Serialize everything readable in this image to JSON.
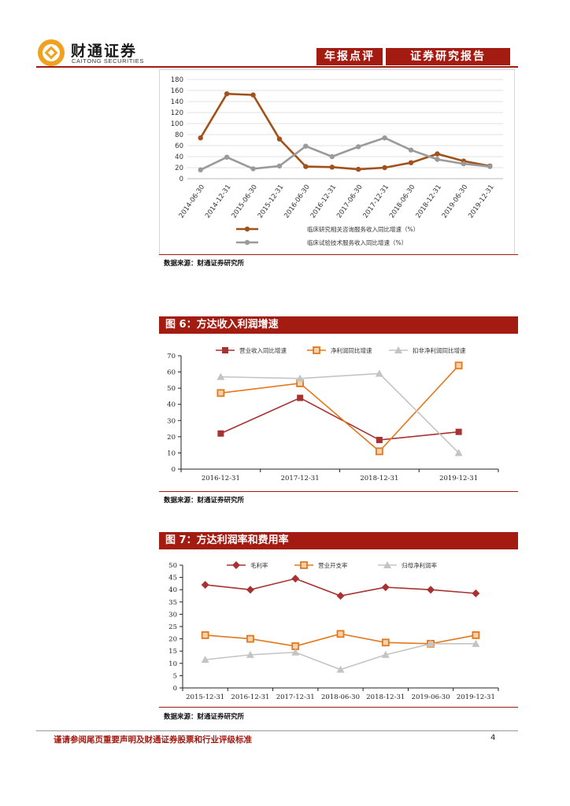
{
  "header": {
    "brand_cn": "财通证券",
    "brand_en": "CAITONG SECURITIES",
    "tag_left": "年报点评",
    "tag_right": "证券研究报告"
  },
  "charts": {
    "chart1": {
      "type": "line",
      "categories": [
        "2014-06-30",
        "2014-12-31",
        "2015-06-30",
        "2015-12-31",
        "2016-06-30",
        "2016-12-31",
        "2017-06-30",
        "2017-12-31",
        "2018-06-30",
        "2018-12-31",
        "2019-06-30",
        "2019-12-31"
      ],
      "ylim": [
        0,
        180
      ],
      "yticks": [
        0,
        20,
        40,
        60,
        80,
        100,
        120,
        140,
        160,
        180
      ],
      "grid": true,
      "legend_position": "bottom",
      "series": [
        {
          "name": "临床研究相关咨询服务收入同比增速（%）",
          "color": "#a0521a",
          "values": [
            74,
            154,
            152,
            72,
            22,
            21,
            17,
            20,
            29,
            45,
            32,
            23
          ]
        },
        {
          "name": "临床试验技术服务收入同比增速（%）",
          "color": "#9a9a9a",
          "values": [
            16,
            39,
            18,
            23,
            59,
            40,
            58,
            74,
            52,
            35,
            27,
            22
          ]
        }
      ]
    },
    "chart2": {
      "type": "line",
      "title": "图 6：方达收入利润增速",
      "categories": [
        "2016-12-31",
        "2017-12-31",
        "2018-12-31",
        "2019-12-31"
      ],
      "ylim": [
        0,
        70
      ],
      "yticks": [
        0,
        10,
        20,
        30,
        40,
        50,
        60,
        70
      ],
      "grid": false,
      "legend_position": "top",
      "series": [
        {
          "name": "营业收入同比增速",
          "color": "#a83232",
          "marker": "square",
          "values": [
            22,
            44,
            18,
            23
          ]
        },
        {
          "name": "净利润同比增速",
          "color": "#e3781c",
          "marker": "square-hollow",
          "values": [
            47,
            53,
            11,
            64
          ]
        },
        {
          "name": "扣非净利润同比增速",
          "color": "#c4c4c4",
          "marker": "triangle",
          "values": [
            57,
            56,
            59,
            10
          ]
        }
      ]
    },
    "chart3": {
      "type": "line",
      "title": "图 7：方达利润率和费用率",
      "categories": [
        "2015-12-31",
        "2016-12-31",
        "2017-12-31",
        "2018-06-30",
        "2018-12-31",
        "2019-06-30",
        "2019-12-31"
      ],
      "ylim": [
        0,
        50
      ],
      "yticks": [
        0,
        5,
        10,
        15,
        20,
        25,
        30,
        35,
        40,
        45,
        50
      ],
      "grid": false,
      "legend_position": "top",
      "series": [
        {
          "name": "毛利率",
          "color": "#a83232",
          "marker": "diamond",
          "values": [
            42,
            40,
            44.5,
            37.5,
            41,
            40,
            38.5
          ]
        },
        {
          "name": "营业开支率",
          "color": "#e3781c",
          "marker": "square-hollow",
          "values": [
            21.5,
            20,
            17,
            22,
            18.5,
            18,
            21.5
          ]
        },
        {
          "name": "归母净利润率",
          "color": "#c4c4c4",
          "marker": "triangle",
          "values": [
            11.5,
            13.5,
            14.5,
            7.5,
            13.5,
            18,
            18
          ]
        }
      ]
    }
  },
  "sources": {
    "s1": "数据来源：财通证券研究所",
    "s2": "数据来源：财通证券研究所",
    "s3": "数据来源：财通证券研究所"
  },
  "footer": {
    "note": "谨请参阅尾页重要声明及财通证券股票和行业评级标准",
    "page": "4"
  }
}
